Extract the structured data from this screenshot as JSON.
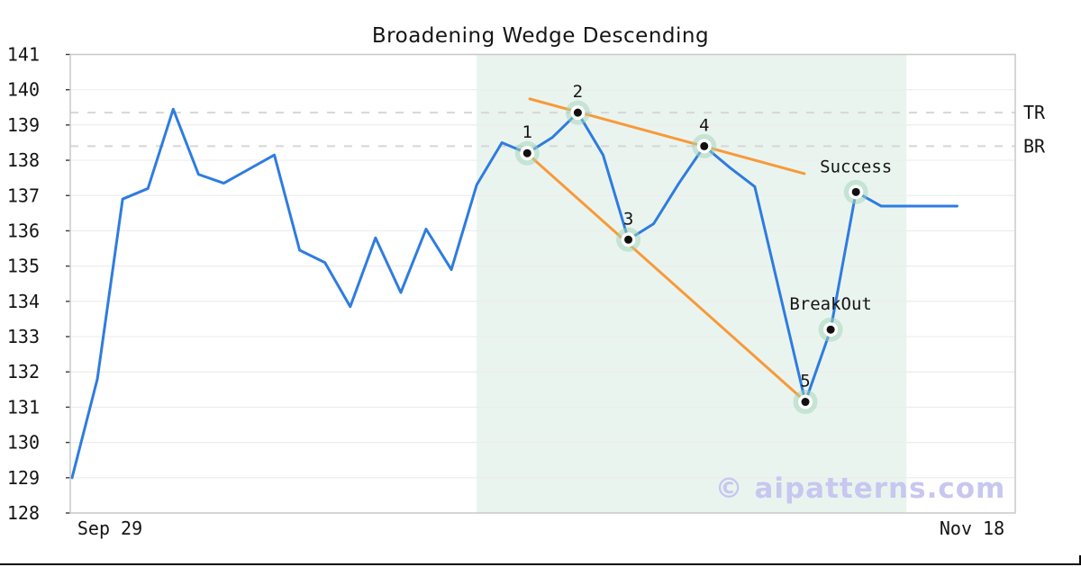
{
  "title": "Broadening Wedge Descending",
  "watermark": {
    "text": "© aipatterns.com",
    "color": "#c7c7ef"
  },
  "chart_data": {
    "type": "line",
    "title": "Broadening Wedge Descending",
    "xlabel": "",
    "ylabel": "",
    "x_axis": {
      "start_label": "Sep 29",
      "end_label": "Nov 18"
    },
    "y_ticks": [
      128,
      129,
      130,
      131,
      132,
      133,
      134,
      135,
      136,
      137,
      138,
      139,
      140,
      141
    ],
    "ylim": [
      128,
      141
    ],
    "grid": "horizontal",
    "legend": "none",
    "series": [
      {
        "name": "price",
        "color": "#2e7ce0",
        "values": [
          129.0,
          131.8,
          136.9,
          137.2,
          139.45,
          137.6,
          137.35,
          137.75,
          138.15,
          135.45,
          135.1,
          133.85,
          135.8,
          134.25,
          136.05,
          134.9,
          137.3,
          138.5,
          138.2,
          138.65,
          139.35,
          138.15,
          135.75,
          136.2,
          137.35,
          138.4,
          137.8,
          137.25,
          134.2,
          131.15,
          133.2,
          137.1,
          136.7,
          136.7,
          136.7,
          136.7
        ]
      }
    ],
    "pattern_markers": [
      {
        "label": "1",
        "index": 18,
        "value": 138.2
      },
      {
        "label": "2",
        "index": 20,
        "value": 139.35
      },
      {
        "label": "3",
        "index": 22,
        "value": 135.75
      },
      {
        "label": "4",
        "index": 25,
        "value": 138.4
      },
      {
        "label": "5",
        "index": 29,
        "value": 131.15
      },
      {
        "label": "BreakOut",
        "index": 30,
        "value": 133.2
      },
      {
        "label": "Success",
        "index": 31,
        "value": 137.1
      }
    ],
    "trendlines": [
      {
        "name": "upper",
        "color": "#f79a3a",
        "from": {
          "index": 18.1,
          "value": 139.74
        },
        "to": {
          "index": 28.96,
          "value": 137.62
        }
      },
      {
        "name": "lower",
        "color": "#f79a3a",
        "from": {
          "index": 18.0,
          "value": 138.19
        },
        "to": {
          "index": 29.0,
          "value": 131.16
        }
      }
    ],
    "dashed_levels": [
      {
        "label": "TR",
        "value": 139.35
      },
      {
        "label": "BR",
        "value": 138.4
      }
    ],
    "highlight_region": {
      "from_index": 16.0,
      "to_index": 33.0,
      "color": "#eaf4ef"
    },
    "colors": {
      "line": "#2e7ce0",
      "trendline": "#f79a3a",
      "marker_halo": "#9fd4b8",
      "marker_dot": "#111111",
      "gridline": "#ececec",
      "dashed_line": "#d6d6d6",
      "spine": "#c9c9c9"
    }
  }
}
